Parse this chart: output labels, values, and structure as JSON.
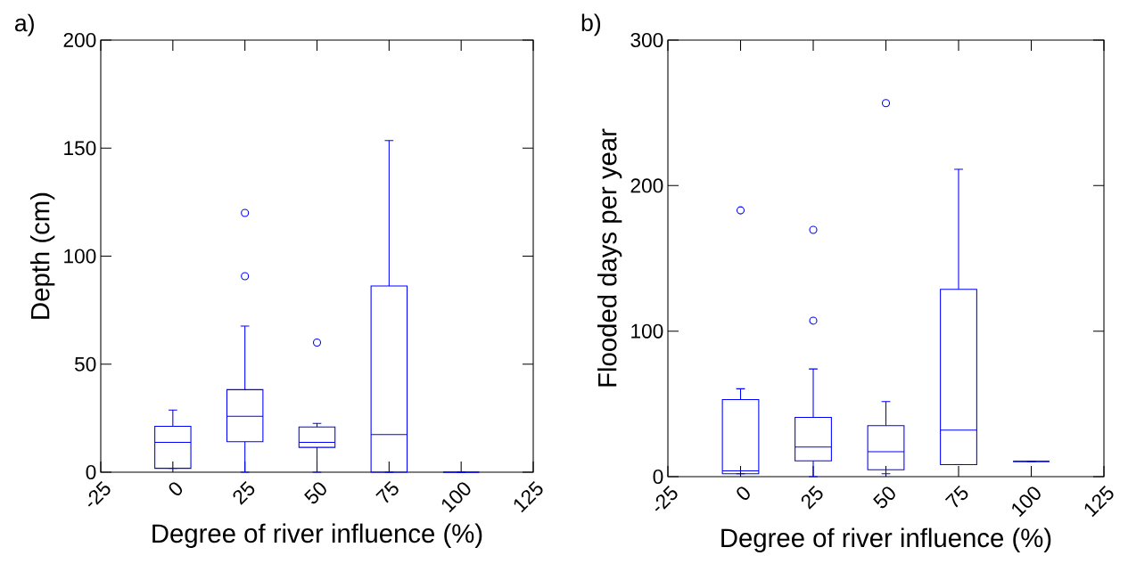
{
  "chart_data": [
    {
      "type": "box",
      "color": "#0000ff",
      "annotations": [
        "a)"
      ],
      "xlabel": "Degree of river influence (%)",
      "ylabel": "Depth (cm)",
      "x": [
        0,
        25,
        50,
        75,
        100
      ],
      "boxes": [
        {
          "low": 1.8,
          "q1": 1.8,
          "median": 13.8,
          "q3": 21.2,
          "high": 28.8
        },
        {
          "low": 0,
          "q1": 14.1,
          "median": 25.9,
          "q3": 38.2,
          "high": 67.6,
          "outliers": [
            120,
            90.7
          ]
        },
        {
          "low": 0,
          "q1": 11.5,
          "median": 13.8,
          "q3": 20.9,
          "high": 22.6,
          "outliers": [
            60
          ]
        },
        {
          "low": 0,
          "q1": 0,
          "median": 17.4,
          "q3": 86.2,
          "high": 153.5
        },
        {
          "low": 0,
          "q1": 0,
          "median": 0,
          "q3": 0,
          "high": 0
        }
      ],
      "xlim": [
        -25,
        125
      ],
      "xticks": [
        -25,
        0,
        25,
        50,
        75,
        100,
        125
      ],
      "ylim": [
        0,
        200
      ],
      "yticks": [
        0,
        50,
        100,
        150,
        200
      ]
    },
    {
      "type": "box",
      "color": "#0000ff",
      "annotations": [
        "b)"
      ],
      "xlabel": "Degree of river influence (%)",
      "ylabel": "Flooded days per year",
      "x": [
        0,
        25,
        50,
        75,
        100
      ],
      "boxes": [
        {
          "low": 2,
          "q1": 2,
          "median": 4,
          "q3": 53,
          "high": 60.4,
          "outliers": [
            183
          ]
        },
        {
          "low": 0,
          "q1": 10.9,
          "median": 20.4,
          "q3": 40.7,
          "high": 74,
          "outliers": [
            169.6,
            107.2
          ]
        },
        {
          "low": 2,
          "q1": 4.8,
          "median": 17.1,
          "q3": 35,
          "high": 51.6,
          "outliers": [
            256.7
          ]
        },
        {
          "low": 8.3,
          "q1": 8.3,
          "median": 32,
          "q3": 128.7,
          "high": 211.2
        },
        {
          "low": 10.5,
          "q1": 10.5,
          "median": 10.5,
          "q3": 10.5,
          "high": 10.5
        }
      ],
      "xlim": [
        -25,
        125
      ],
      "xticks": [
        -25,
        0,
        25,
        50,
        75,
        100,
        125
      ],
      "ylim": [
        0,
        300
      ],
      "yticks": [
        0,
        100,
        200,
        300
      ]
    }
  ]
}
